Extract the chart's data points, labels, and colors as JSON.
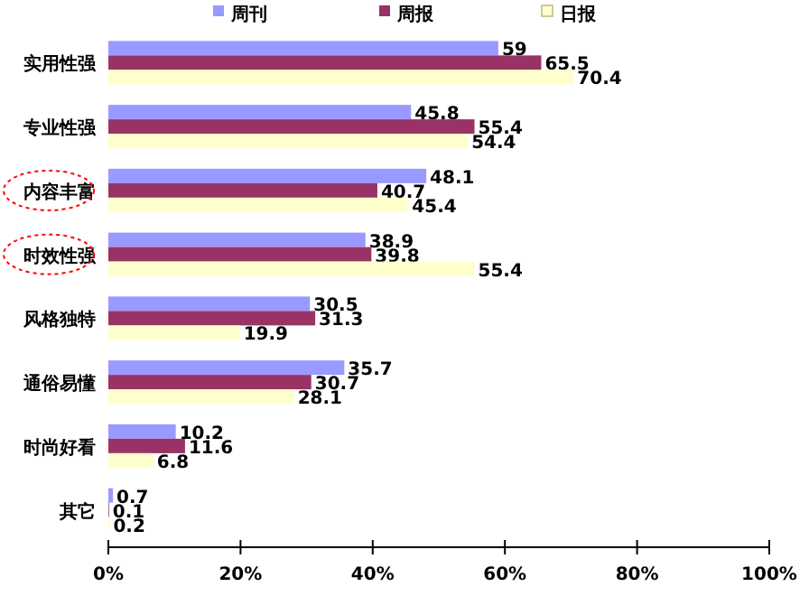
{
  "chart_data": {
    "type": "bar",
    "orientation": "horizontal",
    "categories": [
      "实用性强",
      "专业性强",
      "内容丰富",
      "时效性强",
      "风格独特",
      "通俗易懂",
      "时尚好看",
      "其它"
    ],
    "series": [
      {
        "name": "周刊",
        "color": "#9999ff",
        "values": [
          59,
          45.8,
          48.1,
          38.9,
          30.5,
          35.7,
          10.2,
          0.7
        ]
      },
      {
        "name": "周报",
        "color": "#993366",
        "values": [
          65.5,
          55.4,
          40.7,
          39.8,
          31.3,
          30.7,
          11.6,
          0.1
        ]
      },
      {
        "name": "日报",
        "color": "#ffffcc",
        "values": [
          70.4,
          54.4,
          45.4,
          55.4,
          19.9,
          28.1,
          6.8,
          0.2
        ]
      }
    ],
    "xlim": [
      0,
      100
    ],
    "xticks": [
      {
        "value": 0,
        "label": "0%"
      },
      {
        "value": 20,
        "label": "20%"
      },
      {
        "value": 40,
        "label": "40%"
      },
      {
        "value": 60,
        "label": "60%"
      },
      {
        "value": 80,
        "label": "80%"
      },
      {
        "value": 100,
        "label": "100%"
      }
    ],
    "data_labels": true,
    "legend": "top",
    "grid": false
  }
}
